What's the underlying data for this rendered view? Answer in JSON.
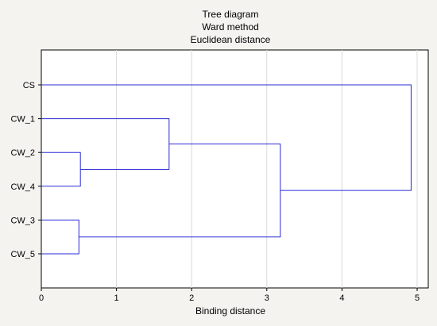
{
  "chart_data": {
    "type": "dendrogram",
    "title": [
      "Tree diagram",
      "Ward method",
      "Euclidean distance"
    ],
    "xlabel": "Binding distance",
    "ylabel": "",
    "xlim": [
      0,
      5
    ],
    "xticks": [
      0,
      1,
      2,
      3,
      4,
      5
    ],
    "grid": true,
    "leaves": [
      "CS",
      "CW_1",
      "CW_2",
      "CW_4",
      "CW_3",
      "CW_5"
    ],
    "merges": [
      {
        "left": "CW_3",
        "right": "CW_5",
        "height": 0.5
      },
      {
        "left": "CW_2",
        "right": "CW_4",
        "height": 0.52
      },
      {
        "left": "CW_1",
        "right": "CW_2+CW_4",
        "height": 1.7
      },
      {
        "left": "CW_1+CW_2+CW_4",
        "right": "CW_3+CW_5",
        "height": 3.18
      },
      {
        "left": "CS",
        "right": "CW_1+CW_2+CW_4+CW_3+CW_5",
        "height": 4.92
      }
    ],
    "colors": {
      "link": "#2b2bd6",
      "grid": "#d8d8d8",
      "plot_bg": "#ffffff"
    }
  }
}
